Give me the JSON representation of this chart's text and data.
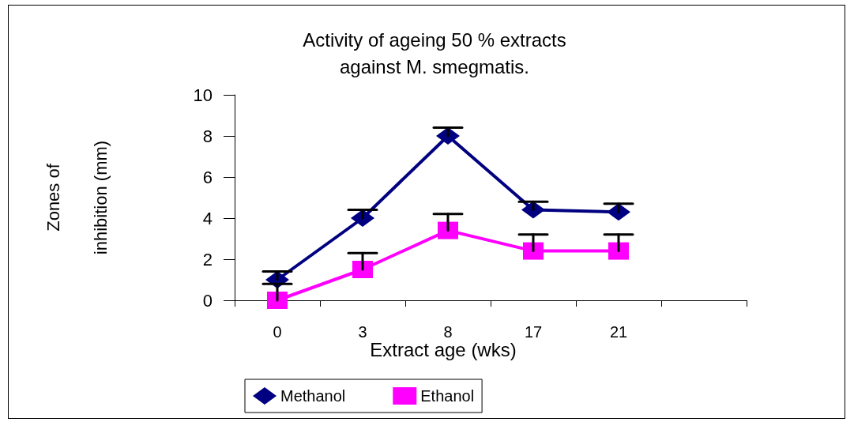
{
  "chart_data": {
    "type": "line",
    "title": "Activity of ageing 50 % extracts\nagainst M. smegmatis.",
    "xlabel": "Extract age (wks)",
    "ylabel": "Zones of\ninhibition (mm)",
    "categories": [
      "0",
      "3",
      "8",
      "17",
      "21",
      null
    ],
    "series": [
      {
        "name": "Methanol",
        "color": "#000080",
        "marker": "diamond",
        "values": [
          1.0,
          4.0,
          8.0,
          4.4,
          4.3,
          null
        ],
        "errors": [
          [
            1.0,
            1.4
          ],
          [
            4.0,
            4.4
          ],
          [
            8.0,
            8.4
          ],
          [
            4.4,
            4.8
          ],
          [
            4.3,
            4.7
          ],
          null
        ]
      },
      {
        "name": "Ethanol",
        "color": "#ff00ff",
        "marker": "square",
        "values": [
          0,
          1.5,
          3.4,
          2.4,
          2.4,
          null
        ],
        "errors": [
          [
            0,
            0.8
          ],
          [
            1.5,
            2.3
          ],
          [
            3.4,
            4.2
          ],
          [
            2.4,
            3.2
          ],
          [
            2.4,
            3.2
          ],
          null
        ]
      }
    ],
    "ylim": [
      0,
      10
    ],
    "yticks": [
      0,
      2,
      4,
      6,
      8,
      10
    ],
    "grid": false,
    "legend": "bottom",
    "line_style": "solid"
  }
}
